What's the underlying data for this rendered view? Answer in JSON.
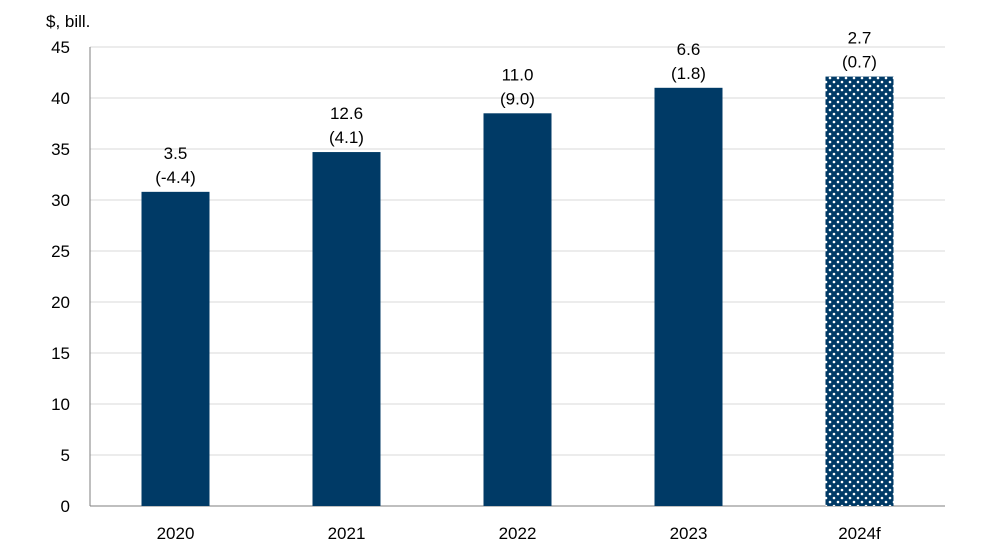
{
  "chart_data": {
    "type": "bar",
    "unit_label": "$, bill.",
    "categories": [
      "2020",
      "2021",
      "2022",
      "2023",
      "2024f"
    ],
    "values": [
      30.8,
      34.7,
      38.5,
      41.0,
      42.1
    ],
    "label_line1": [
      "3.5",
      "12.6",
      "11.0",
      "6.6",
      "2.7"
    ],
    "label_line2": [
      "(-4.4)",
      "(4.1)",
      "(9.0)",
      "(1.8)",
      "(0.7)"
    ],
    "forecast_flags": [
      false,
      false,
      false,
      false,
      true
    ],
    "ylim": [
      0,
      45
    ],
    "yticks": [
      0,
      5,
      10,
      15,
      20,
      25,
      30,
      35,
      40,
      45
    ],
    "grid": true,
    "legend": "none",
    "colors": {
      "bar": "#003a66",
      "forecast_bar": "#003a66",
      "forecast_dots": "#ffffff",
      "grid": "#d9d9d9",
      "axis": "#7f7f7f"
    }
  }
}
